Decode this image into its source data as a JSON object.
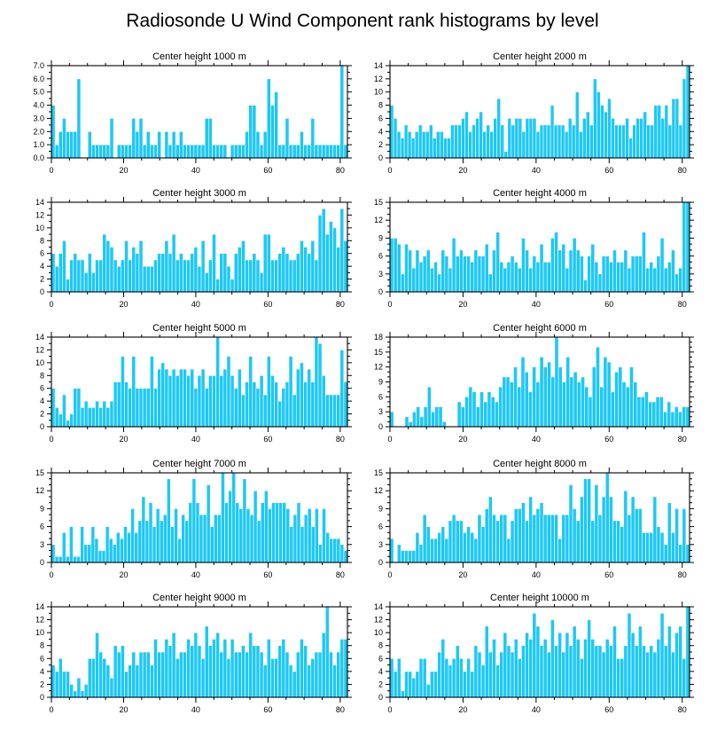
{
  "figure_title": "Radiosonde U Wind Component rank histograms by level",
  "colors": {
    "bar": "#1ec8f5",
    "bar_edge": "#ffffff",
    "frame": "#000000"
  },
  "chart_data": [
    {
      "type": "bar",
      "title": "Center height 1000 m",
      "xlabel": "",
      "ylabel": "",
      "xlim": [
        0,
        82
      ],
      "ylim": [
        0,
        7
      ],
      "yticks": [
        0,
        1,
        2,
        3,
        4,
        5,
        6,
        7
      ],
      "ytick_labels": [
        "0.0",
        "1.0",
        "2.0",
        "3.0",
        "4.0",
        "5.0",
        "6.0",
        "7.0"
      ],
      "xticks": [
        0,
        20,
        40,
        60,
        80
      ],
      "xtick_labels": [
        "0",
        "20",
        "40",
        "60",
        "80"
      ],
      "values": [
        4,
        1,
        2,
        3,
        2,
        2,
        2,
        6,
        0,
        0,
        2,
        1,
        1,
        1,
        1,
        1,
        3,
        0,
        1,
        1,
        1,
        1,
        3,
        2,
        3,
        1,
        2,
        1,
        1,
        2,
        0,
        2,
        1,
        2,
        1,
        2,
        1,
        1,
        1,
        1,
        1,
        1,
        3,
        3,
        1,
        1,
        1,
        1,
        0,
        1,
        1,
        1,
        1,
        2,
        4,
        4,
        2,
        1,
        2,
        6,
        4,
        5,
        1,
        1,
        3,
        1,
        1,
        1,
        2,
        1,
        1,
        3,
        1,
        1,
        1,
        1,
        1,
        1,
        1,
        7,
        1
      ]
    },
    {
      "type": "bar",
      "title": "Center height 2000 m",
      "xlabel": "",
      "ylabel": "",
      "xlim": [
        0,
        82
      ],
      "ylim": [
        0,
        14
      ],
      "yticks": [
        0,
        2,
        4,
        6,
        8,
        10,
        12,
        14
      ],
      "ytick_labels": [
        "0",
        "2",
        "4",
        "6",
        "8",
        "10",
        "12",
        "14"
      ],
      "xticks": [
        0,
        20,
        40,
        60,
        80
      ],
      "xtick_labels": [
        "0",
        "20",
        "40",
        "60",
        "80"
      ],
      "values": [
        8,
        6,
        4,
        3,
        5,
        4,
        3,
        4,
        5,
        4,
        4,
        5,
        3,
        4,
        4,
        3,
        3,
        5,
        5,
        5,
        6,
        7,
        4,
        5,
        6,
        7,
        4,
        5,
        4,
        6,
        9,
        5,
        1,
        6,
        5,
        6,
        6,
        4,
        6,
        6,
        6,
        4,
        5,
        5,
        5,
        8,
        5,
        5,
        5,
        4,
        6,
        5,
        10,
        4,
        6,
        7,
        5,
        12,
        10,
        8,
        7,
        9,
        6,
        5,
        5,
        5,
        6,
        3,
        5,
        6,
        6,
        7,
        5,
        5,
        8,
        8,
        6,
        8,
        5,
        9,
        9,
        5,
        12,
        14
      ]
    },
    {
      "type": "bar",
      "title": "Center height 3000 m",
      "xlabel": "",
      "ylabel": "",
      "xlim": [
        0,
        82
      ],
      "ylim": [
        0,
        14
      ],
      "yticks": [
        0,
        2,
        4,
        6,
        8,
        10,
        12,
        14
      ],
      "ytick_labels": [
        "0",
        "2",
        "4",
        "6",
        "8",
        "10",
        "12",
        "14"
      ],
      "xticks": [
        0,
        20,
        40,
        60,
        80
      ],
      "xtick_labels": [
        "0",
        "20",
        "40",
        "60",
        "80"
      ],
      "values": [
        6,
        4,
        6,
        8,
        2,
        5,
        6,
        5,
        5,
        3,
        6,
        3,
        5,
        5,
        9,
        8,
        7,
        5,
        4,
        5,
        8,
        5,
        7,
        6,
        8,
        4,
        4,
        4,
        5,
        6,
        6,
        8,
        6,
        9,
        5,
        6,
        5,
        5,
        6,
        7,
        4,
        8,
        3,
        5,
        9,
        2,
        6,
        6,
        4,
        2,
        6,
        7,
        8,
        5,
        5,
        6,
        5,
        3,
        9,
        9,
        5,
        5,
        6,
        7,
        6,
        5,
        5,
        6,
        8,
        7,
        6,
        8,
        5,
        12,
        13,
        9,
        11,
        10,
        7,
        13,
        8
      ]
    },
    {
      "type": "bar",
      "title": "Center height 4000 m",
      "xlabel": "",
      "ylabel": "",
      "xlim": [
        0,
        82
      ],
      "ylim": [
        0,
        15
      ],
      "yticks": [
        0,
        3,
        6,
        9,
        12,
        15
      ],
      "ytick_labels": [
        "0",
        "3",
        "6",
        "9",
        "12",
        "15"
      ],
      "xticks": [
        0,
        20,
        40,
        60,
        80
      ],
      "xtick_labels": [
        "0",
        "20",
        "40",
        "60",
        "80"
      ],
      "values": [
        9,
        9,
        8,
        3,
        8,
        7,
        4,
        7,
        5,
        6,
        7,
        4,
        5,
        3,
        7,
        6,
        4,
        9,
        6,
        7,
        6,
        6,
        5,
        7,
        6,
        6,
        8,
        3,
        7,
        10,
        5,
        4,
        5,
        6,
        5,
        4,
        9,
        7,
        4,
        6,
        5,
        8,
        5,
        5,
        9,
        10,
        7,
        8,
        4,
        7,
        9,
        7,
        6,
        2,
        6,
        8,
        5,
        3,
        6,
        6,
        5,
        7,
        5,
        5,
        7,
        4,
        6,
        6,
        6,
        10,
        4,
        5,
        4,
        6,
        9,
        4,
        5,
        7,
        3,
        4,
        15,
        15
      ]
    },
    {
      "type": "bar",
      "title": "Center height 5000 m",
      "xlabel": "",
      "ylabel": "",
      "xlim": [
        0,
        82
      ],
      "ylim": [
        0,
        14
      ],
      "yticks": [
        0,
        2,
        4,
        6,
        8,
        10,
        12,
        14
      ],
      "ytick_labels": [
        "0",
        "2",
        "4",
        "6",
        "8",
        "10",
        "12",
        "14"
      ],
      "xticks": [
        0,
        20,
        40,
        60,
        80
      ],
      "xtick_labels": [
        "0",
        "20",
        "40",
        "60",
        "80"
      ],
      "values": [
        6,
        3,
        2,
        5,
        1,
        2,
        6,
        6,
        3,
        4,
        3,
        3,
        4,
        3,
        4,
        3,
        4,
        7,
        7,
        11,
        7,
        6,
        11,
        6,
        6,
        6,
        6,
        11,
        6,
        9,
        10,
        9,
        8,
        9,
        8,
        9,
        9,
        8,
        9,
        6,
        8,
        9,
        6,
        8,
        8,
        14,
        8,
        9,
        11,
        8,
        6,
        9,
        5,
        7,
        11,
        7,
        6,
        8,
        5,
        11,
        8,
        7,
        4,
        6,
        7,
        11,
        5,
        9,
        10,
        7,
        9,
        7,
        14,
        13,
        8,
        5,
        5,
        5,
        5,
        12,
        7
      ]
    },
    {
      "type": "bar",
      "title": "Center height 6000 m",
      "xlabel": "",
      "ylabel": "",
      "xlim": [
        0,
        82
      ],
      "ylim": [
        0,
        18
      ],
      "yticks": [
        0,
        3,
        6,
        9,
        12,
        15,
        18
      ],
      "ytick_labels": [
        "0",
        "3",
        "6",
        "9",
        "12",
        "15",
        "18"
      ],
      "xticks": [
        0,
        20,
        40,
        60,
        80
      ],
      "xtick_labels": [
        "0",
        "20",
        "40",
        "60",
        "80"
      ],
      "values": [
        3,
        0,
        0,
        0,
        2,
        1,
        3,
        4,
        2,
        4,
        8,
        3,
        4,
        4,
        1,
        0,
        0,
        0,
        5,
        4,
        6,
        8,
        7,
        4,
        7,
        5,
        7,
        6,
        5,
        8,
        10,
        10,
        9,
        12,
        8,
        14,
        11,
        7,
        12,
        9,
        14,
        12,
        13,
        10,
        18,
        12,
        9,
        14,
        10,
        11,
        9,
        10,
        8,
        6,
        12,
        16,
        8,
        14,
        13,
        7,
        11,
        12,
        9,
        8,
        12,
        9,
        6,
        6,
        7,
        5,
        5,
        6,
        6,
        3,
        5,
        3,
        4,
        3,
        4,
        4
      ]
    },
    {
      "type": "bar",
      "title": "Center height 7000 m",
      "xlabel": "",
      "ylabel": "",
      "xlim": [
        0,
        82
      ],
      "ylim": [
        0,
        15
      ],
      "yticks": [
        0,
        3,
        6,
        9,
        12,
        15
      ],
      "ytick_labels": [
        "0",
        "3",
        "6",
        "9",
        "12",
        "15"
      ],
      "xticks": [
        0,
        20,
        40,
        60,
        80
      ],
      "xtick_labels": [
        "0",
        "20",
        "40",
        "60",
        "80"
      ],
      "values": [
        3,
        1,
        1,
        5,
        1,
        6,
        1,
        1,
        6,
        3,
        3,
        6,
        4,
        2,
        2,
        6,
        4,
        3,
        5,
        4,
        6,
        5,
        9,
        5,
        7,
        11,
        7,
        10,
        6,
        9,
        7,
        8,
        14,
        6,
        9,
        4,
        8,
        7,
        10,
        14,
        10,
        8,
        8,
        13,
        6,
        8,
        8,
        15,
        10,
        12,
        15,
        10,
        9,
        14,
        9,
        8,
        12,
        7,
        10,
        12,
        9,
        10,
        10,
        10,
        10,
        9,
        6,
        8,
        10,
        6,
        8,
        9,
        6,
        9,
        3,
        9,
        5,
        4,
        4,
        4,
        3,
        2
      ]
    },
    {
      "type": "bar",
      "title": "Center height 8000 m",
      "xlabel": "",
      "ylabel": "",
      "xlim": [
        0,
        82
      ],
      "ylim": [
        0,
        15
      ],
      "yticks": [
        0,
        3,
        6,
        9,
        12,
        15
      ],
      "ytick_labels": [
        "0",
        "3",
        "6",
        "9",
        "12",
        "15"
      ],
      "xticks": [
        0,
        20,
        40,
        60,
        80
      ],
      "xtick_labels": [
        "0",
        "20",
        "40",
        "60",
        "80"
      ],
      "values": [
        4,
        0,
        3,
        2,
        2,
        2,
        2,
        5,
        3,
        8,
        6,
        4,
        4,
        5,
        6,
        4,
        7,
        8,
        7,
        7,
        5,
        6,
        5,
        4,
        8,
        6,
        9,
        11,
        8,
        7,
        8,
        8,
        4,
        7,
        9,
        9,
        10,
        7,
        11,
        8,
        9,
        10,
        8,
        8,
        8,
        8,
        4,
        8,
        8,
        13,
        9,
        7,
        11,
        14,
        14,
        7,
        13,
        8,
        11,
        15,
        11,
        7,
        7,
        6,
        12,
        8,
        11,
        9,
        9,
        5,
        5,
        5,
        11,
        6,
        5,
        3,
        10,
        5,
        9,
        3,
        9,
        3
      ]
    },
    {
      "type": "bar",
      "title": "Center height 9000 m",
      "xlabel": "",
      "ylabel": "",
      "xlim": [
        0,
        82
      ],
      "ylim": [
        0,
        14
      ],
      "yticks": [
        0,
        2,
        4,
        6,
        8,
        10,
        12,
        14
      ],
      "ytick_labels": [
        "0",
        "2",
        "4",
        "6",
        "8",
        "10",
        "12",
        "14"
      ],
      "xticks": [
        0,
        20,
        40,
        60,
        80
      ],
      "xtick_labels": [
        "0",
        "20",
        "40",
        "60",
        "80"
      ],
      "values": [
        5,
        4,
        6,
        4,
        4,
        2,
        1,
        3,
        1,
        2,
        6,
        6,
        10,
        7,
        6,
        5,
        3,
        8,
        7,
        8,
        4,
        5,
        7,
        5,
        7,
        7,
        7,
        5,
        9,
        7,
        7,
        9,
        8,
        10,
        6,
        7,
        7,
        9,
        8,
        10,
        8,
        6,
        11,
        8,
        9,
        10,
        7,
        9,
        6,
        9,
        7,
        7,
        8,
        7,
        10,
        8,
        8,
        7,
        5,
        9,
        6,
        6,
        8,
        9,
        7,
        5,
        4,
        7,
        9,
        8,
        5,
        6,
        7,
        7,
        10,
        14,
        7,
        5,
        7,
        9,
        9
      ]
    },
    {
      "type": "bar",
      "title": "Center height 10000 m",
      "xlabel": "",
      "ylabel": "",
      "xlim": [
        0,
        82
      ],
      "ylim": [
        0,
        14
      ],
      "yticks": [
        0,
        2,
        4,
        6,
        8,
        10,
        12,
        14
      ],
      "ytick_labels": [
        "0",
        "2",
        "4",
        "6",
        "8",
        "10",
        "12",
        "14"
      ],
      "xticks": [
        0,
        20,
        40,
        60,
        80
      ],
      "xtick_labels": [
        "0",
        "20",
        "40",
        "60",
        "80"
      ],
      "values": [
        6,
        4,
        6,
        1,
        4,
        4,
        3,
        4,
        6,
        6,
        2,
        4,
        4,
        7,
        9,
        6,
        5,
        6,
        8,
        6,
        4,
        6,
        4,
        8,
        7,
        5,
        11,
        7,
        9,
        5,
        7,
        10,
        8,
        7,
        9,
        6,
        8,
        10,
        9,
        13,
        11,
        8,
        9,
        7,
        12,
        8,
        10,
        7,
        10,
        8,
        11,
        9,
        6,
        9,
        12,
        9,
        8,
        8,
        7,
        9,
        8,
        11,
        6,
        6,
        8,
        13,
        10,
        8,
        11,
        8,
        7,
        8,
        7,
        9,
        13,
        8,
        11,
        7,
        10,
        11,
        6,
        14
      ]
    }
  ]
}
